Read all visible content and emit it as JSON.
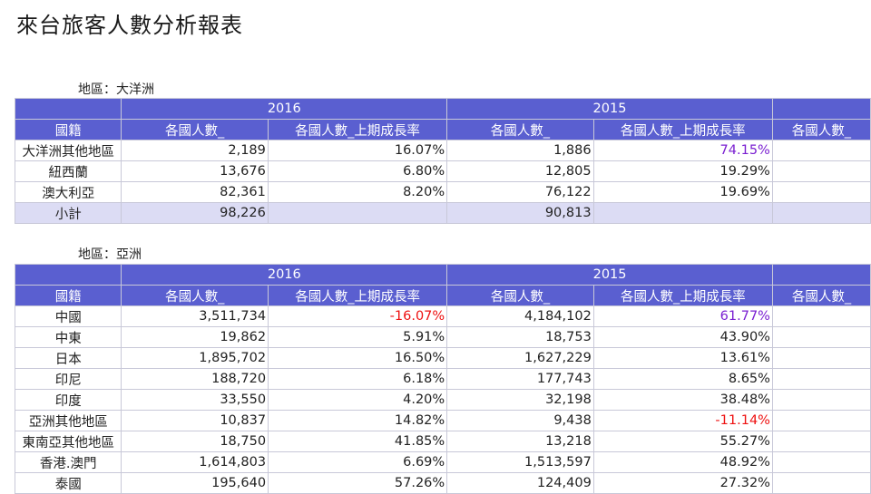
{
  "title": "來台旅客人數分析報表",
  "colors": {
    "header_bg": "#5a5fd0",
    "subtotal_bg": "#dcdcf4",
    "negative": "#ee1111",
    "highlight": "#7a1fd1"
  },
  "columns": {
    "country": "國籍",
    "visitors": "各國人數_",
    "growth": "各國人數_上期成長率"
  },
  "years": [
    "2016",
    "2015"
  ],
  "sections": [
    {
      "region_label": "地區：大洋洲",
      "rows": [
        {
          "name": "大洋洲其他地區",
          "v2016": "2,189",
          "g2016": "16.07%",
          "v2015": "1,886",
          "g2015": "74.15%",
          "g2015_style": "hi"
        },
        {
          "name": "紐西蘭",
          "v2016": "13,676",
          "g2016": "6.80%",
          "v2015": "12,805",
          "g2015": "19.29%"
        },
        {
          "name": "澳大利亞",
          "v2016": "82,361",
          "g2016": "8.20%",
          "v2015": "76,122",
          "g2015": "19.69%"
        }
      ],
      "subtotal": {
        "name": "小計",
        "v2016": "98,226",
        "g2016": "",
        "v2015": "90,813",
        "g2015": ""
      }
    },
    {
      "region_label": "地區：亞洲",
      "rows": [
        {
          "name": "中國",
          "v2016": "3,511,734",
          "g2016": "-16.07%",
          "g2016_style": "neg",
          "v2015": "4,184,102",
          "g2015": "61.77%",
          "g2015_style": "hi"
        },
        {
          "name": "中東",
          "v2016": "19,862",
          "g2016": "5.91%",
          "v2015": "18,753",
          "g2015": "43.90%"
        },
        {
          "name": "日本",
          "v2016": "1,895,702",
          "g2016": "16.50%",
          "v2015": "1,627,229",
          "g2015": "13.61%"
        },
        {
          "name": "印尼",
          "v2016": "188,720",
          "g2016": "6.18%",
          "v2015": "177,743",
          "g2015": "8.65%"
        },
        {
          "name": "印度",
          "v2016": "33,550",
          "g2016": "4.20%",
          "v2015": "32,198",
          "g2015": "38.48%"
        },
        {
          "name": "亞洲其他地區",
          "v2016": "10,837",
          "g2016": "14.82%",
          "v2015": "9,438",
          "g2015": "-11.14%",
          "g2015_style": "neg"
        },
        {
          "name": "東南亞其他地區",
          "v2016": "18,750",
          "g2016": "41.85%",
          "v2015": "13,218",
          "g2015": "55.27%"
        },
        {
          "name": "香港.澳門",
          "v2016": "1,614,803",
          "g2016": "6.69%",
          "v2015": "1,513,597",
          "g2015": "48.92%"
        },
        {
          "name": "泰國",
          "v2016": "195,640",
          "g2016": "57.26%",
          "v2015": "124,409",
          "g2015": "27.32%"
        }
      ]
    }
  ]
}
